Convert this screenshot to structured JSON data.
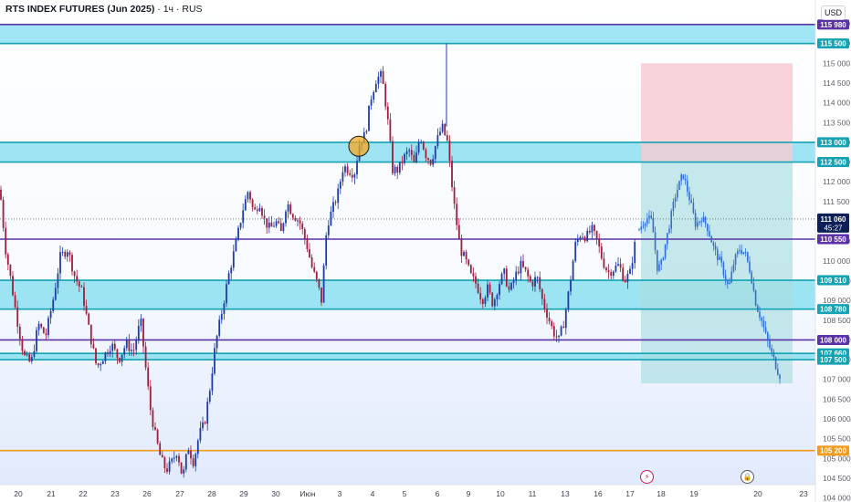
{
  "header": {
    "symbol_title": "RTS INDEX FUTURES (Jun 2025)",
    "separator": "·",
    "interval": "1ч",
    "exchange": "RUS",
    "currency": "USD"
  },
  "icons": {
    "flash_event": "lightning-icon",
    "lock_event": "lock-icon"
  },
  "colors": {
    "up_candle": "#1e3ca6",
    "down_candle": "#9e1f3b",
    "projection": "#2f6fd8",
    "zone_fill": "#7fdcef",
    "zone_border": "#13a3b5",
    "purple_level": "#5b33a6",
    "orange_level": "#f39a1a",
    "stop_zone": "#f6c9d1",
    "target_zone": "#a9dde0",
    "current_price_tag": "#0c1f56"
  },
  "chart_data": {
    "type": "candlestick",
    "y_axis": {
      "ylim": [
        103900,
        116600
      ],
      "ticks": [
        104000,
        104500,
        105000,
        105500,
        106000,
        106500,
        107000,
        107500,
        108000,
        108500,
        109000,
        109500,
        110000,
        110500,
        111000,
        111500,
        112000,
        112500,
        113000,
        113500,
        114000,
        114500,
        115000,
        115500,
        116000
      ],
      "tick_labels": [
        "104 000",
        "104 500",
        "105 000",
        "105 500",
        "106 000",
        "106 500",
        "107 000",
        "107 500",
        "108 000",
        "108 500",
        "109 000",
        "109 500",
        "110 000",
        "110 500",
        "111 000",
        "111 500",
        "112 000",
        "112 500",
        "113 000",
        "113 500",
        "114 000",
        "114 500",
        "115 000",
        "115 500",
        "116 000"
      ]
    },
    "x_axis": {
      "labels": [
        "20",
        "21",
        "22",
        "23",
        "26",
        "27",
        "28",
        "29",
        "30",
        "Июн",
        "3",
        "4",
        "5",
        "6",
        "9",
        "10",
        "11",
        "13",
        "16",
        "17",
        "18",
        "19",
        "20",
        "23"
      ]
    },
    "zones": [
      {
        "top": 115980,
        "bottom": 115500
      },
      {
        "top": 113000,
        "bottom": 112500
      },
      {
        "top": 109510,
        "bottom": 108780
      },
      {
        "top": 107660,
        "bottom": 107500
      }
    ],
    "levels": [
      {
        "value": 115980,
        "label": "115 980",
        "color": "#5b33a6"
      },
      {
        "value": 115500,
        "label": "115 500",
        "color": "#13a3b5"
      },
      {
        "value": 113000,
        "label": "113 000",
        "color": "#13a3b5"
      },
      {
        "value": 112500,
        "label": "112 500",
        "color": "#13a3b5"
      },
      {
        "value": 110550,
        "label": "110 550",
        "color": "#5b33a6"
      },
      {
        "value": 109510,
        "label": "109 510",
        "color": "#13a3b5"
      },
      {
        "value": 108780,
        "label": "108 780",
        "color": "#13a3b5"
      },
      {
        "value": 108000,
        "label": "108 000",
        "color": "#5b33a6"
      },
      {
        "value": 107660,
        "label": "107 660",
        "color": "#13a3b5"
      },
      {
        "value": 107500,
        "label": "107 500",
        "color": "#13a3b5"
      },
      {
        "value": 105200,
        "label": "105 200",
        "color": "#f39a1a"
      }
    ],
    "current_price": {
      "value": 111060,
      "label": "111 060",
      "countdown": "45:27"
    },
    "risk_reward": {
      "entry": 112500,
      "stop": 115000,
      "target": 106900
    },
    "price_path": [
      {
        "t": 0,
        "p": 111800
      },
      {
        "t": 6,
        "p": 110300
      },
      {
        "t": 12,
        "p": 109500
      },
      {
        "t": 18,
        "p": 108600
      },
      {
        "t": 26,
        "p": 107600
      },
      {
        "t": 34,
        "p": 107400
      },
      {
        "t": 42,
        "p": 108400
      },
      {
        "t": 50,
        "p": 108100
      },
      {
        "t": 58,
        "p": 109000
      },
      {
        "t": 66,
        "p": 110100
      },
      {
        "t": 74,
        "p": 110300
      },
      {
        "t": 82,
        "p": 109600
      },
      {
        "t": 90,
        "p": 109200
      },
      {
        "t": 98,
        "p": 108200
      },
      {
        "t": 106,
        "p": 107300
      },
      {
        "t": 114,
        "p": 107600
      },
      {
        "t": 122,
        "p": 107900
      },
      {
        "t": 130,
        "p": 107500
      },
      {
        "t": 138,
        "p": 107900
      },
      {
        "t": 146,
        "p": 107700
      },
      {
        "t": 154,
        "p": 108500
      },
      {
        "t": 160,
        "p": 107200
      },
      {
        "t": 165,
        "p": 106200
      },
      {
        "t": 170,
        "p": 105600
      },
      {
        "t": 176,
        "p": 105000
      },
      {
        "t": 182,
        "p": 104700
      },
      {
        "t": 188,
        "p": 104900
      },
      {
        "t": 194,
        "p": 105200
      },
      {
        "t": 200,
        "p": 104500
      },
      {
        "t": 206,
        "p": 105300
      },
      {
        "t": 212,
        "p": 104900
      },
      {
        "t": 218,
        "p": 105600
      },
      {
        "t": 224,
        "p": 105900
      },
      {
        "t": 230,
        "p": 106800
      },
      {
        "t": 236,
        "p": 107900
      },
      {
        "t": 242,
        "p": 108600
      },
      {
        "t": 250,
        "p": 109600
      },
      {
        "t": 258,
        "p": 110400
      },
      {
        "t": 266,
        "p": 111300
      },
      {
        "t": 272,
        "p": 111800
      },
      {
        "t": 278,
        "p": 111200
      },
      {
        "t": 284,
        "p": 111500
      },
      {
        "t": 290,
        "p": 111000
      },
      {
        "t": 296,
        "p": 110800
      },
      {
        "t": 302,
        "p": 111000
      },
      {
        "t": 308,
        "p": 110700
      },
      {
        "t": 314,
        "p": 111500
      },
      {
        "t": 320,
        "p": 111200
      },
      {
        "t": 328,
        "p": 111000
      },
      {
        "t": 336,
        "p": 110400
      },
      {
        "t": 342,
        "p": 109800
      },
      {
        "t": 348,
        "p": 109400
      },
      {
        "t": 352,
        "p": 109000
      },
      {
        "t": 358,
        "p": 110900
      },
      {
        "t": 364,
        "p": 111300
      },
      {
        "t": 370,
        "p": 111700
      },
      {
        "t": 376,
        "p": 112400
      },
      {
        "t": 382,
        "p": 112300
      },
      {
        "t": 388,
        "p": 112200
      },
      {
        "t": 394,
        "p": 113000
      },
      {
        "t": 400,
        "p": 113200
      },
      {
        "t": 406,
        "p": 114100
      },
      {
        "t": 412,
        "p": 114600
      },
      {
        "t": 418,
        "p": 114700
      },
      {
        "t": 424,
        "p": 113700
      },
      {
        "t": 430,
        "p": 112300
      },
      {
        "t": 436,
        "p": 112300
      },
      {
        "t": 442,
        "p": 112600
      },
      {
        "t": 448,
        "p": 112800
      },
      {
        "t": 454,
        "p": 112400
      },
      {
        "t": 460,
        "p": 113200
      },
      {
        "t": 466,
        "p": 112700
      },
      {
        "t": 472,
        "p": 112500
      },
      {
        "t": 478,
        "p": 113000
      },
      {
        "t": 484,
        "p": 113400
      },
      {
        "t": 490,
        "p": 113000
      },
      {
        "t": 494,
        "p": 112100
      },
      {
        "t": 498,
        "p": 111300
      },
      {
        "t": 504,
        "p": 110300
      },
      {
        "t": 510,
        "p": 110000
      },
      {
        "t": 516,
        "p": 109600
      },
      {
        "t": 522,
        "p": 109400
      },
      {
        "t": 528,
        "p": 109000
      },
      {
        "t": 534,
        "p": 109300
      },
      {
        "t": 540,
        "p": 108900
      },
      {
        "t": 546,
        "p": 109400
      },
      {
        "t": 552,
        "p": 109700
      },
      {
        "t": 558,
        "p": 109200
      },
      {
        "t": 564,
        "p": 109600
      },
      {
        "t": 570,
        "p": 109900
      },
      {
        "t": 576,
        "p": 109700
      },
      {
        "t": 582,
        "p": 109400
      },
      {
        "t": 588,
        "p": 109600
      },
      {
        "t": 594,
        "p": 109000
      },
      {
        "t": 600,
        "p": 108600
      },
      {
        "t": 606,
        "p": 108200
      },
      {
        "t": 612,
        "p": 108000
      },
      {
        "t": 618,
        "p": 108500
      },
      {
        "t": 624,
        "p": 109400
      },
      {
        "t": 630,
        "p": 110400
      },
      {
        "t": 636,
        "p": 110700
      },
      {
        "t": 642,
        "p": 110600
      },
      {
        "t": 648,
        "p": 110800
      },
      {
        "t": 654,
        "p": 110500
      },
      {
        "t": 660,
        "p": 110000
      },
      {
        "t": 666,
        "p": 109700
      },
      {
        "t": 672,
        "p": 109800
      },
      {
        "t": 678,
        "p": 109900
      },
      {
        "t": 684,
        "p": 109500
      },
      {
        "t": 690,
        "p": 109700
      },
      {
        "t": 696,
        "p": 110500
      }
    ],
    "projection_path": [
      {
        "t": 700,
        "p": 110800
      },
      {
        "t": 708,
        "p": 111100
      },
      {
        "t": 714,
        "p": 111000
      },
      {
        "t": 720,
        "p": 109800
      },
      {
        "t": 724,
        "p": 109900
      },
      {
        "t": 732,
        "p": 110800
      },
      {
        "t": 740,
        "p": 111700
      },
      {
        "t": 748,
        "p": 112200
      },
      {
        "t": 756,
        "p": 111500
      },
      {
        "t": 762,
        "p": 110900
      },
      {
        "t": 768,
        "p": 111100
      },
      {
        "t": 774,
        "p": 110900
      },
      {
        "t": 782,
        "p": 110300
      },
      {
        "t": 790,
        "p": 109900
      },
      {
        "t": 798,
        "p": 109300
      },
      {
        "t": 804,
        "p": 110000
      },
      {
        "t": 810,
        "p": 110300
      },
      {
        "t": 816,
        "p": 110200
      },
      {
        "t": 822,
        "p": 109700
      },
      {
        "t": 828,
        "p": 108900
      },
      {
        "t": 834,
        "p": 108500
      },
      {
        "t": 840,
        "p": 108000
      },
      {
        "t": 846,
        "p": 107600
      },
      {
        "t": 852,
        "p": 107200
      },
      {
        "t": 856,
        "p": 107000
      }
    ],
    "markers": [
      {
        "type": "circle",
        "t": 393,
        "p": 112900,
        "color": "#f4a81d"
      }
    ]
  }
}
